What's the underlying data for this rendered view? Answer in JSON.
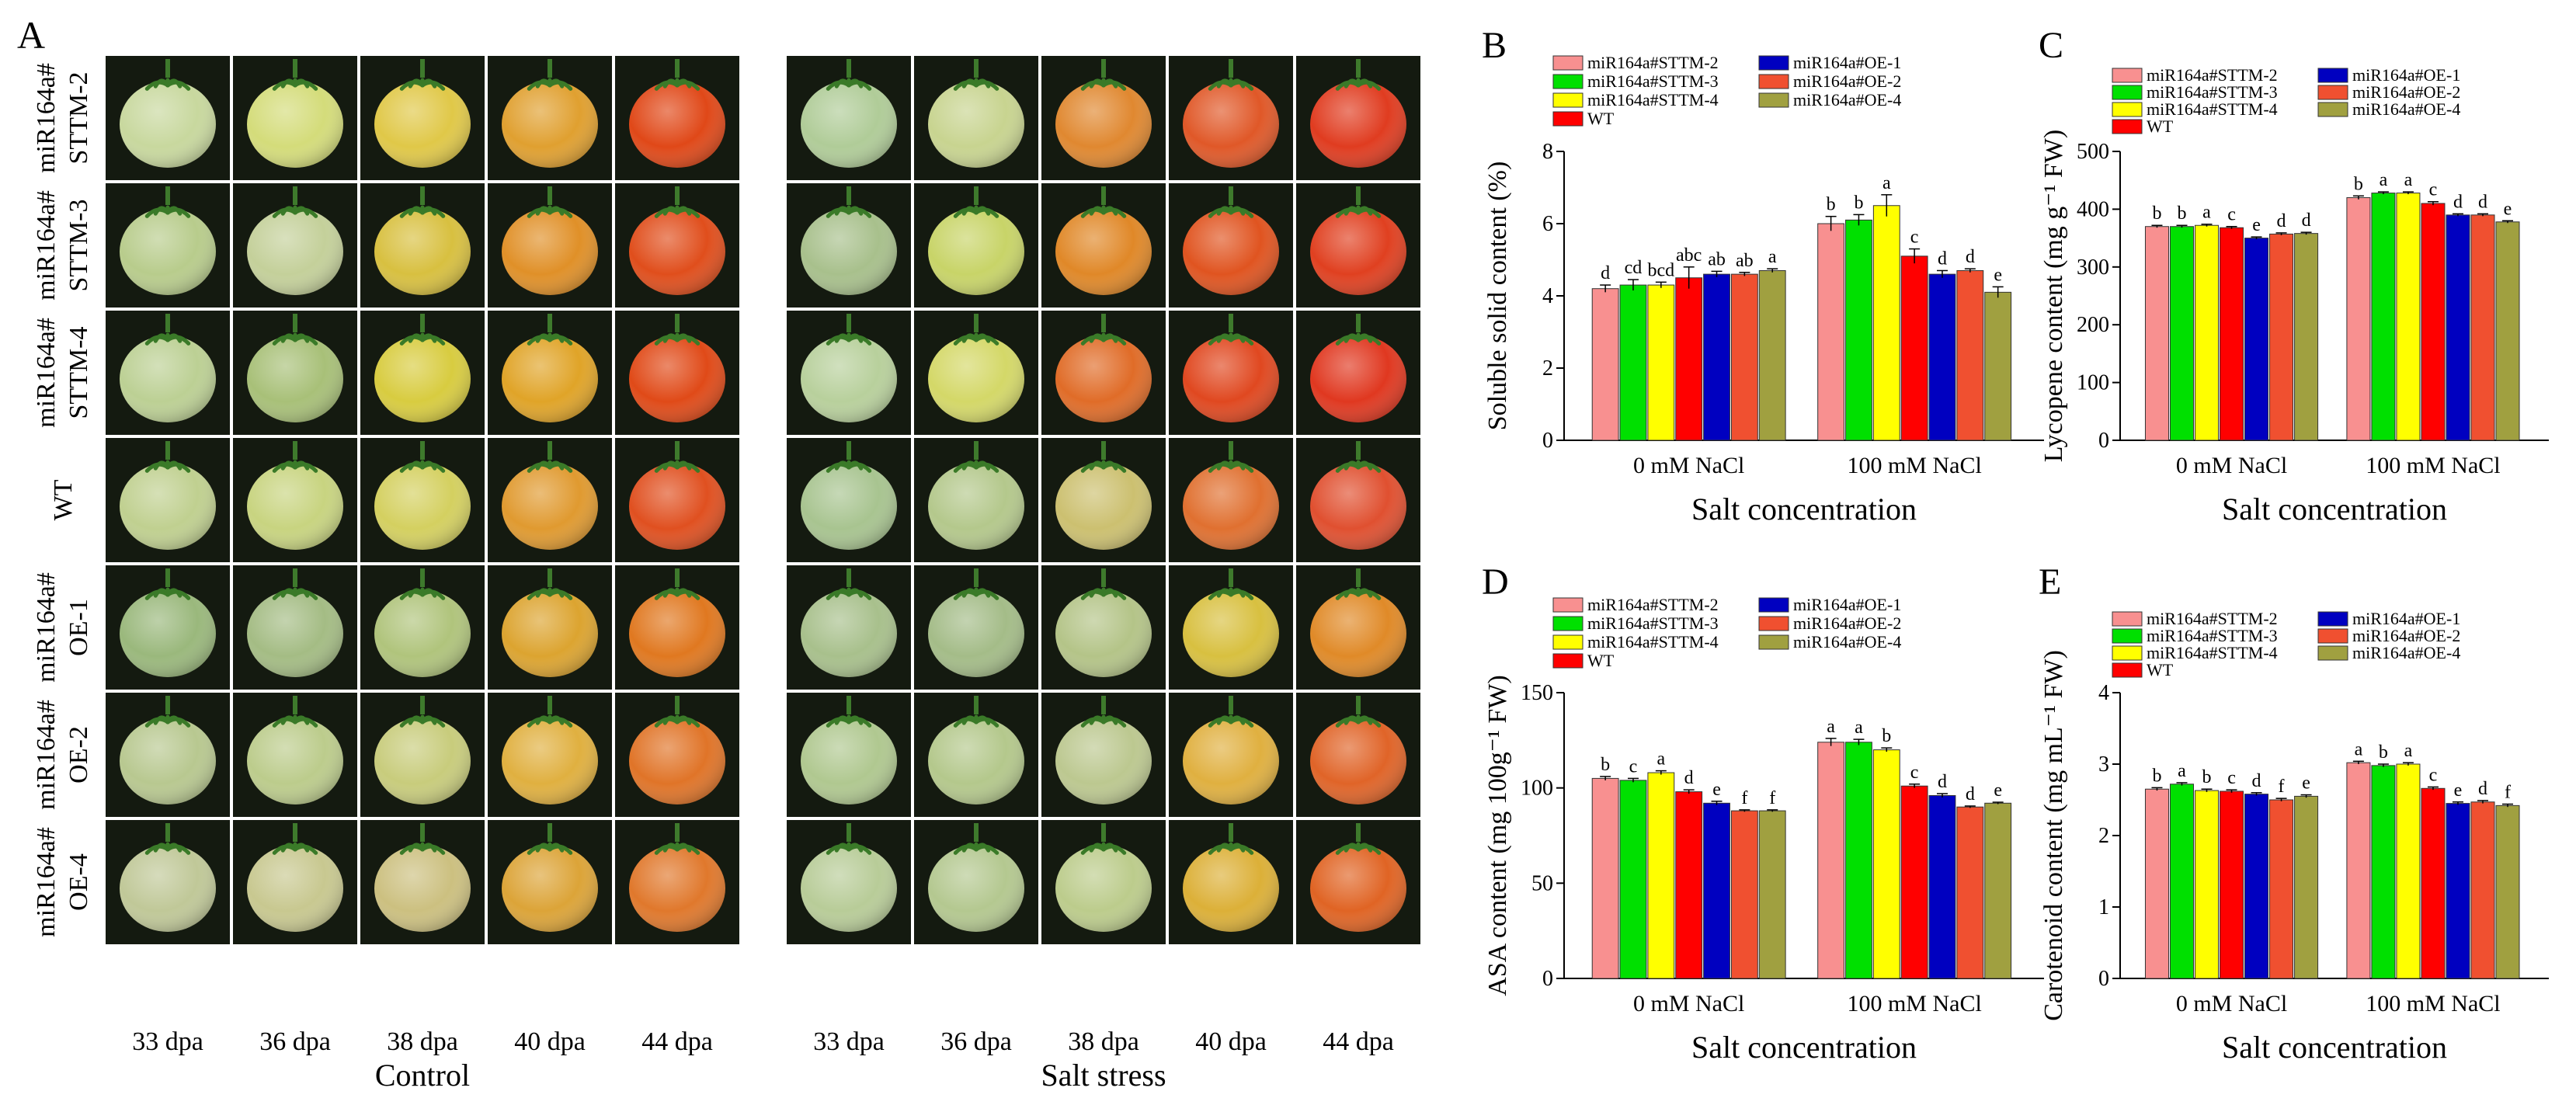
{
  "panel_a": {
    "letter": "A",
    "row_labels": [
      [
        "miR164a#",
        "STTM-2"
      ],
      [
        "miR164a#",
        "STTM-3"
      ],
      [
        "miR164a#",
        "STTM-4"
      ],
      [
        "WT"
      ],
      [
        "miR164a#",
        "OE-1"
      ],
      [
        "miR164a#",
        "OE-2"
      ],
      [
        "miR164a#",
        "OE-4"
      ]
    ],
    "days": [
      "33 dpa",
      "36 dpa",
      "38 dpa",
      "40 dpa",
      "44 dpa"
    ],
    "conditions": [
      "Control",
      "Salt stress"
    ],
    "fruit_colors": {
      "control": [
        [
          "#c8d89e",
          "#d4dc7a",
          "#e0c848",
          "#e0a030",
          "#e04818"
        ],
        [
          "#b8cc8c",
          "#c4d09a",
          "#d8c040",
          "#e09028",
          "#e04e1c"
        ],
        [
          "#bcd094",
          "#a8c078",
          "#d8cc40",
          "#e0a428",
          "#e04a18"
        ],
        [
          "#c0d090",
          "#c8d480",
          "#d4d060",
          "#e09a30",
          "#e05020"
        ],
        [
          "#9ab87c",
          "#a4bc84",
          "#b0c47c",
          "#dca430",
          "#e07820"
        ],
        [
          "#b8c890",
          "#bccc8c",
          "#c8cc7c",
          "#e0b040",
          "#e07428"
        ],
        [
          "#c0c898",
          "#c8c890",
          "#ccc080",
          "#dca438",
          "#e0782c"
        ]
      ],
      "salt": [
        [
          "#b0cc98",
          "#c8d490",
          "#e08830",
          "#e05828",
          "#e03c20"
        ],
        [
          "#a8c08c",
          "#c8d468",
          "#e08828",
          "#e05420",
          "#e04020"
        ],
        [
          "#b8d09c",
          "#d4d868",
          "#e06c28",
          "#e04820",
          "#e03820"
        ],
        [
          "#a8c490",
          "#b4c88c",
          "#ccc070",
          "#e07030",
          "#e05030"
        ],
        [
          "#a8c08c",
          "#a4bc88",
          "#b4c488",
          "#d8c040",
          "#e08a28"
        ],
        [
          "#b0c890",
          "#b4c88c",
          "#bcc890",
          "#e0b040",
          "#e06428"
        ],
        [
          "#b8cc98",
          "#b4c890",
          "#bccc8c",
          "#dcb038",
          "#e06424"
        ]
      ]
    }
  },
  "legend_labels": [
    "miR164a#STTM-2",
    "miR164a#STTM-3",
    "miR164a#STTM-4",
    "WT",
    "miR164a#OE-1",
    "miR164a#OE-2",
    "miR164a#OE-4"
  ],
  "series_colors": [
    "#f89090",
    "#00e000",
    "#ffff00",
    "#ff0000",
    "#0000c0",
    "#f05030",
    "#a0a040"
  ],
  "chart_data": [
    {
      "panel": "B",
      "type": "bar",
      "ylabel": "Soluble solid content (%)",
      "xlabel": "Salt concentration",
      "categories": [
        "0 mM NaCl",
        "100 mM NaCl"
      ],
      "ylim": [
        0,
        8
      ],
      "yticks": [
        0,
        2,
        4,
        6,
        8
      ],
      "series": [
        {
          "name": "miR164a#STTM-2",
          "values": [
            4.2,
            6.0
          ],
          "errors": [
            0.1,
            0.2
          ],
          "letters": [
            "d",
            "b"
          ]
        },
        {
          "name": "miR164a#STTM-3",
          "values": [
            4.3,
            6.1
          ],
          "errors": [
            0.15,
            0.15
          ],
          "letters": [
            "cd",
            "b"
          ]
        },
        {
          "name": "miR164a#STTM-4",
          "values": [
            4.3,
            6.5
          ],
          "errors": [
            0.08,
            0.3
          ],
          "letters": [
            "bcd",
            "a"
          ]
        },
        {
          "name": "WT",
          "values": [
            4.5,
            5.1
          ],
          "errors": [
            0.3,
            0.2
          ],
          "letters": [
            "abc",
            "c"
          ]
        },
        {
          "name": "miR164a#OE-1",
          "values": [
            4.6,
            4.6
          ],
          "errors": [
            0.08,
            0.1
          ],
          "letters": [
            "ab",
            "d"
          ]
        },
        {
          "name": "miR164a#OE-2",
          "values": [
            4.6,
            4.7
          ],
          "errors": [
            0.05,
            0.05
          ],
          "letters": [
            "ab",
            "d"
          ]
        },
        {
          "name": "miR164a#OE-4",
          "values": [
            4.7,
            4.1
          ],
          "errors": [
            0.05,
            0.15
          ],
          "letters": [
            "a",
            "e"
          ]
        }
      ]
    },
    {
      "panel": "C",
      "type": "bar",
      "ylabel": "Lycopene content (mg g⁻¹ FW)",
      "xlabel": "Salt concentration",
      "categories": [
        "0 mM NaCl",
        "100 mM NaCl"
      ],
      "ylim": [
        0,
        500
      ],
      "yticks": [
        0,
        100,
        200,
        300,
        400,
        500
      ],
      "series": [
        {
          "name": "miR164a#STTM-2",
          "values": [
            370,
            420
          ],
          "errors": [
            2,
            3
          ],
          "letters": [
            "b",
            "b"
          ]
        },
        {
          "name": "miR164a#STTM-3",
          "values": [
            370,
            428
          ],
          "errors": [
            2,
            2
          ],
          "letters": [
            "b",
            "a"
          ]
        },
        {
          "name": "miR164a#STTM-4",
          "values": [
            372,
            428
          ],
          "errors": [
            2,
            2
          ],
          "letters": [
            "a",
            "a"
          ]
        },
        {
          "name": "WT",
          "values": [
            368,
            410
          ],
          "errors": [
            2,
            3
          ],
          "letters": [
            "c",
            "c"
          ]
        },
        {
          "name": "miR164a#OE-1",
          "values": [
            350,
            390
          ],
          "errors": [
            2,
            2
          ],
          "letters": [
            "e",
            "d"
          ]
        },
        {
          "name": "miR164a#OE-2",
          "values": [
            357,
            390
          ],
          "errors": [
            2,
            2
          ],
          "letters": [
            "d",
            "d"
          ]
        },
        {
          "name": "miR164a#OE-4",
          "values": [
            358,
            378
          ],
          "errors": [
            2,
            2
          ],
          "letters": [
            "d",
            "e"
          ]
        }
      ]
    },
    {
      "panel": "D",
      "type": "bar",
      "ylabel": "ASA content (mg 100g⁻¹ FW)",
      "xlabel": "Salt concentration",
      "categories": [
        "0 mM NaCl",
        "100 mM NaCl"
      ],
      "ylim": [
        0,
        150
      ],
      "yticks": [
        0,
        50,
        100,
        150
      ],
      "series": [
        {
          "name": "miR164a#STTM-2",
          "values": [
            105,
            124
          ],
          "errors": [
            1,
            2
          ],
          "letters": [
            "b",
            "a"
          ]
        },
        {
          "name": "miR164a#STTM-3",
          "values": [
            104,
            124
          ],
          "errors": [
            1,
            1.5
          ],
          "letters": [
            "c",
            "a"
          ]
        },
        {
          "name": "miR164a#STTM-4",
          "values": [
            108,
            120
          ],
          "errors": [
            1,
            1
          ],
          "letters": [
            "a",
            "b"
          ]
        },
        {
          "name": "WT",
          "values": [
            98,
            101
          ],
          "errors": [
            1,
            1
          ],
          "letters": [
            "d",
            "c"
          ]
        },
        {
          "name": "miR164a#OE-1",
          "values": [
            92,
            96
          ],
          "errors": [
            1,
            1
          ],
          "letters": [
            "e",
            "d"
          ]
        },
        {
          "name": "miR164a#OE-2",
          "values": [
            88,
            90
          ],
          "errors": [
            0.5,
            0.5
          ],
          "letters": [
            "f",
            "d"
          ]
        },
        {
          "name": "miR164a#OE-4",
          "values": [
            88,
            92
          ],
          "errors": [
            0.5,
            0.5
          ],
          "letters": [
            "f",
            "e"
          ]
        }
      ]
    },
    {
      "panel": "E",
      "type": "bar",
      "ylabel": "Carotenoid content (mg mL⁻¹ FW)",
      "xlabel": "Salt concentration",
      "categories": [
        "0 mM NaCl",
        "100 mM NaCl"
      ],
      "ylim": [
        0,
        4
      ],
      "yticks": [
        0,
        1,
        2,
        3,
        4
      ],
      "series": [
        {
          "name": "miR164a#STTM-2",
          "values": [
            2.65,
            3.02
          ],
          "errors": [
            0.02,
            0.02
          ],
          "letters": [
            "b",
            "a"
          ]
        },
        {
          "name": "miR164a#STTM-3",
          "values": [
            2.72,
            2.98
          ],
          "errors": [
            0.02,
            0.02
          ],
          "letters": [
            "a",
            "b"
          ]
        },
        {
          "name": "miR164a#STTM-4",
          "values": [
            2.63,
            3.0
          ],
          "errors": [
            0.02,
            0.02
          ],
          "letters": [
            "b",
            "a"
          ]
        },
        {
          "name": "WT",
          "values": [
            2.62,
            2.66
          ],
          "errors": [
            0.02,
            0.02
          ],
          "letters": [
            "c",
            "c"
          ]
        },
        {
          "name": "miR164a#OE-1",
          "values": [
            2.58,
            2.45
          ],
          "errors": [
            0.02,
            0.02
          ],
          "letters": [
            "d",
            "e"
          ]
        },
        {
          "name": "miR164a#OE-2",
          "values": [
            2.5,
            2.47
          ],
          "errors": [
            0.02,
            0.02
          ],
          "letters": [
            "f",
            "d"
          ]
        },
        {
          "name": "miR164a#OE-4",
          "values": [
            2.55,
            2.42
          ],
          "errors": [
            0.02,
            0.02
          ],
          "letters": [
            "e",
            "f"
          ]
        }
      ]
    }
  ]
}
